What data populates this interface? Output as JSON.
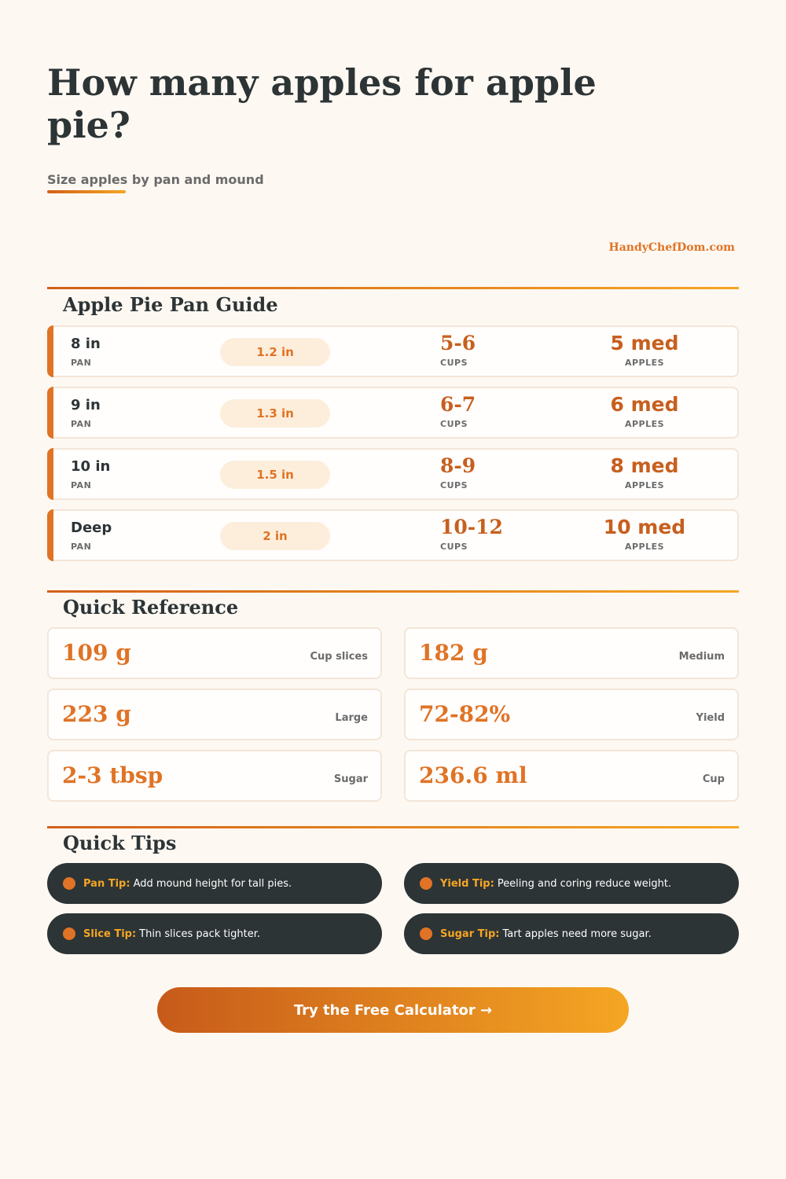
{
  "header": {
    "title": "How many apples for apple pie?",
    "subtitle": "Size apples by pan and mound",
    "brand": "HandyChefDom.com"
  },
  "pan_guide": {
    "title": "Apple Pie Pan Guide",
    "pan_label": "PAN",
    "cups_label": "CUPS",
    "apples_label": "APPLES",
    "rows": [
      {
        "pan": "8 in",
        "mound": "1.2 in",
        "cups": "5-6",
        "apples": "5 med"
      },
      {
        "pan": "9 in",
        "mound": "1.3 in",
        "cups": "6-7",
        "apples": "6 med"
      },
      {
        "pan": "10 in",
        "mound": "1.5 in",
        "cups": "8-9",
        "apples": "8 med"
      },
      {
        "pan": "Deep",
        "mound": "2 in",
        "cups": "10-12",
        "apples": "10 med"
      }
    ]
  },
  "quick_reference": {
    "title": "Quick Reference",
    "items": [
      {
        "value": "109 g",
        "label": "Cup slices"
      },
      {
        "value": "182 g",
        "label": "Medium"
      },
      {
        "value": "223 g",
        "label": "Large"
      },
      {
        "value": "72-82%",
        "label": "Yield"
      },
      {
        "value": "2-3 tbsp",
        "label": "Sugar"
      },
      {
        "value": "236.6 ml",
        "label": "Cup"
      }
    ]
  },
  "quick_tips": {
    "title": "Quick Tips",
    "items": [
      {
        "label": "Pan Tip:",
        "text": "Add mound height for tall pies."
      },
      {
        "label": "Yield Tip:",
        "text": "Peeling and coring reduce weight."
      },
      {
        "label": "Slice Tip:",
        "text": "Thin slices pack tighter."
      },
      {
        "label": "Sugar Tip:",
        "text": "Tart apples need more sugar."
      }
    ]
  },
  "cta": {
    "label": "Try the Free Calculator →"
  },
  "colors": {
    "accent": "#e07325",
    "accent_light": "#f5a623",
    "dark": "#2d3436",
    "background": "#fdf8f2"
  }
}
